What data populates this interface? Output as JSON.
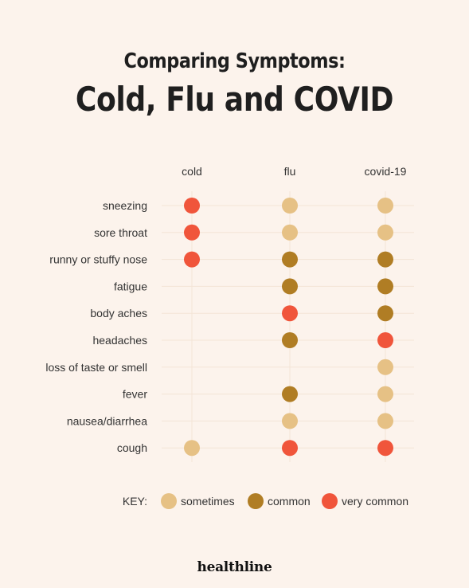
{
  "header": {
    "title_line1": "Comparing Symptoms:",
    "title_line2": "Cold, Flu and COVID"
  },
  "brand": {
    "logo_text": "healthline"
  },
  "chart_data": {
    "type": "table",
    "title": "Comparing Symptoms: Cold, Flu and COVID",
    "columns": [
      "cold",
      "flu",
      "covid-19"
    ],
    "rows": [
      "sneezing",
      "sore throat",
      "runny or stuffy nose",
      "fatigue",
      "body aches",
      "headaches",
      "loss of taste or smell",
      "fever",
      "nausea/diarrhea",
      "cough"
    ],
    "levels": {
      "sometimes": "#e6c185",
      "common": "#b07d24",
      "very common": "#f0553b"
    },
    "values": [
      [
        "very common",
        "sometimes",
        "sometimes"
      ],
      [
        "very common",
        "sometimes",
        "sometimes"
      ],
      [
        "very common",
        "common",
        "common"
      ],
      [
        null,
        "common",
        "common"
      ],
      [
        null,
        "very common",
        "common"
      ],
      [
        null,
        "common",
        "very common"
      ],
      [
        null,
        null,
        "sometimes"
      ],
      [
        null,
        "common",
        "sometimes"
      ],
      [
        null,
        "sometimes",
        "sometimes"
      ],
      [
        "sometimes",
        "very common",
        "very common"
      ]
    ],
    "key": {
      "label": "KEY:",
      "items": [
        "sometimes",
        "common",
        "very common"
      ]
    },
    "grid_color": "#f3e4d6"
  }
}
